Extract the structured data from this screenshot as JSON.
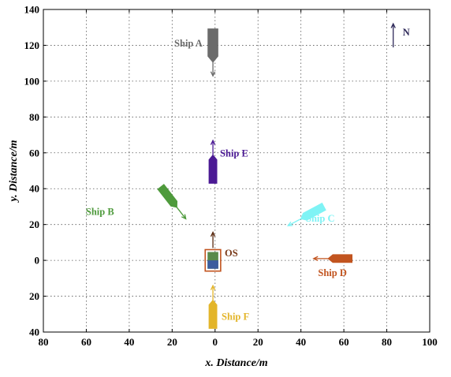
{
  "chart_data": {
    "type": "scatter",
    "title": "",
    "xlabel": "x. Distance/m",
    "ylabel": "y. Distance/m",
    "xlim": [
      -80,
      100
    ],
    "ylim": [
      -40,
      140
    ],
    "grid": true,
    "x_ticks": [
      -80,
      -60,
      -40,
      -20,
      0,
      20,
      40,
      60,
      80,
      100
    ],
    "x_tick_labels": [
      "80",
      "60",
      "40",
      "20",
      "0",
      "20",
      "40",
      "60",
      "80",
      "100"
    ],
    "y_ticks": [
      -40,
      -20,
      0,
      20,
      40,
      60,
      80,
      100,
      120,
      140
    ],
    "y_tick_labels": [
      "40",
      "20",
      "0",
      "20",
      "40",
      "60",
      "80",
      "100",
      "120",
      "140"
    ],
    "north_label": "N",
    "north_color": "#2f2a5a",
    "north": {
      "x": 83,
      "y": 125,
      "heading_deg": 0
    },
    "ships": [
      {
        "name": "Ship A",
        "x": -1,
        "y": 121,
        "heading_deg": 180,
        "color": "#6b6b6b",
        "length": 14,
        "width": 5
      },
      {
        "name": "Ship B",
        "x": -22,
        "y": 36,
        "heading_deg": 142,
        "color": "#4e9a3c",
        "length": 11,
        "width": 4
      },
      {
        "name": "Ship C",
        "x": 46,
        "y": 27,
        "heading_deg": 242,
        "color": "#7ff3f5",
        "length": 11,
        "width": 4
      },
      {
        "name": "Ship D",
        "x": 59,
        "y": 1,
        "heading_deg": 270,
        "color": "#c2541f",
        "length": 10,
        "width": 4
      },
      {
        "name": "Ship E",
        "x": -1,
        "y": 50,
        "heading_deg": 0,
        "color": "#4b1a94",
        "length": 12,
        "width": 4
      },
      {
        "name": "Ship F",
        "x": -1,
        "y": -31,
        "heading_deg": 0,
        "color": "#e3b52a",
        "length": 12,
        "width": 4
      },
      {
        "name": "OS",
        "x": -1,
        "y": 0,
        "heading_deg": 0,
        "color": "#7a3b1a",
        "length": 10,
        "width": 5
      }
    ]
  }
}
